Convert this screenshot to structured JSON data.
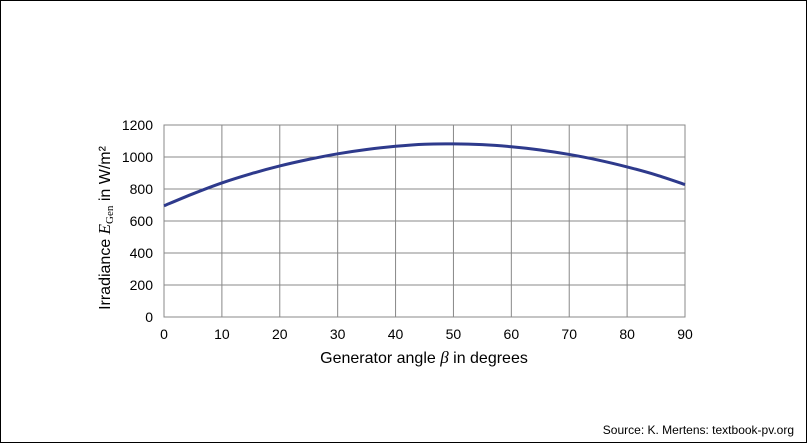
{
  "chart_data": {
    "type": "line",
    "xlabel_prefix": "Generator angle ",
    "xlabel_symbol": "β",
    "xlabel_suffix": " in degrees",
    "ylabel_prefix": "Irradiance ",
    "ylabel_symbol": "E",
    "ylabel_subscript": "Gen",
    "ylabel_suffix": " in W/m²",
    "xlim": [
      0,
      90
    ],
    "ylim": [
      0,
      1200
    ],
    "x_ticks": [
      0,
      10,
      20,
      30,
      40,
      50,
      60,
      70,
      80,
      90
    ],
    "y_ticks": [
      0,
      200,
      400,
      600,
      800,
      1000,
      1200
    ],
    "grid": true,
    "line_color": "#2e3a8c",
    "series": [
      {
        "x": [
          0,
          5,
          10,
          15,
          20,
          25,
          30,
          35,
          40,
          45,
          50,
          55,
          60,
          65,
          70,
          75,
          80,
          85,
          90
        ],
        "values": [
          695,
          770,
          838,
          895,
          944,
          985,
          1020,
          1047,
          1067,
          1080,
          1082,
          1077,
          1064,
          1044,
          1016,
          981,
          938,
          888,
          828
        ]
      }
    ]
  },
  "source": "Source: K. Mertens: textbook-pv.org"
}
